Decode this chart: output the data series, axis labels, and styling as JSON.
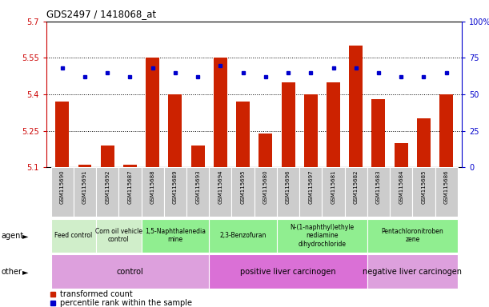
{
  "title": "GDS2497 / 1418068_at",
  "samples": [
    "GSM115690",
    "GSM115691",
    "GSM115692",
    "GSM115687",
    "GSM115688",
    "GSM115689",
    "GSM115693",
    "GSM115694",
    "GSM115695",
    "GSM115680",
    "GSM115696",
    "GSM115697",
    "GSM115681",
    "GSM115682",
    "GSM115683",
    "GSM115684",
    "GSM115685",
    "GSM115686"
  ],
  "red_values": [
    5.37,
    5.11,
    5.19,
    5.11,
    5.55,
    5.4,
    5.19,
    5.55,
    5.37,
    5.24,
    5.45,
    5.4,
    5.45,
    5.6,
    5.38,
    5.2,
    5.3,
    5.4
  ],
  "blue_values": [
    68,
    62,
    65,
    62,
    68,
    65,
    62,
    70,
    65,
    62,
    65,
    65,
    68,
    68,
    65,
    62,
    62,
    65
  ],
  "ylim_left": [
    5.1,
    5.7
  ],
  "ylim_right": [
    0,
    100
  ],
  "yticks_left": [
    5.1,
    5.25,
    5.4,
    5.55,
    5.7
  ],
  "yticks_right": [
    0,
    25,
    50,
    75,
    100
  ],
  "ytick_labels_left": [
    "5.1",
    "5.25",
    "5.4",
    "5.55",
    "5.7"
  ],
  "ytick_labels_right": [
    "0",
    "25",
    "50",
    "75",
    "100%"
  ],
  "hlines": [
    5.25,
    5.4,
    5.55
  ],
  "agent_groups": [
    {
      "label": "Feed control",
      "start": 0,
      "end": 2,
      "color": "#d0eeca"
    },
    {
      "label": "Corn oil vehicle\ncontrol",
      "start": 2,
      "end": 4,
      "color": "#d0eeca"
    },
    {
      "label": "1,5-Naphthalenedia\nmine",
      "start": 4,
      "end": 7,
      "color": "#90ee90"
    },
    {
      "label": "2,3-Benzofuran",
      "start": 7,
      "end": 10,
      "color": "#90ee90"
    },
    {
      "label": "N-(1-naphthyl)ethyle\nnediamine\ndihydrochloride",
      "start": 10,
      "end": 14,
      "color": "#90ee90"
    },
    {
      "label": "Pentachloronitroben\nzene",
      "start": 14,
      "end": 18,
      "color": "#90ee90"
    }
  ],
  "other_groups": [
    {
      "label": "control",
      "start": 0,
      "end": 7,
      "color": "#dda0dd"
    },
    {
      "label": "positive liver carcinogen",
      "start": 7,
      "end": 14,
      "color": "#da70d6"
    },
    {
      "label": "negative liver carcinogen",
      "start": 14,
      "end": 18,
      "color": "#dda0dd"
    }
  ],
  "legend_red": "transformed count",
  "legend_blue": "percentile rank within the sample",
  "bar_color": "#cc2200",
  "dot_color": "#0000cc",
  "axis_color_left": "#cc0000",
  "axis_color_right": "#0000cc",
  "sample_bg": "#cccccc"
}
